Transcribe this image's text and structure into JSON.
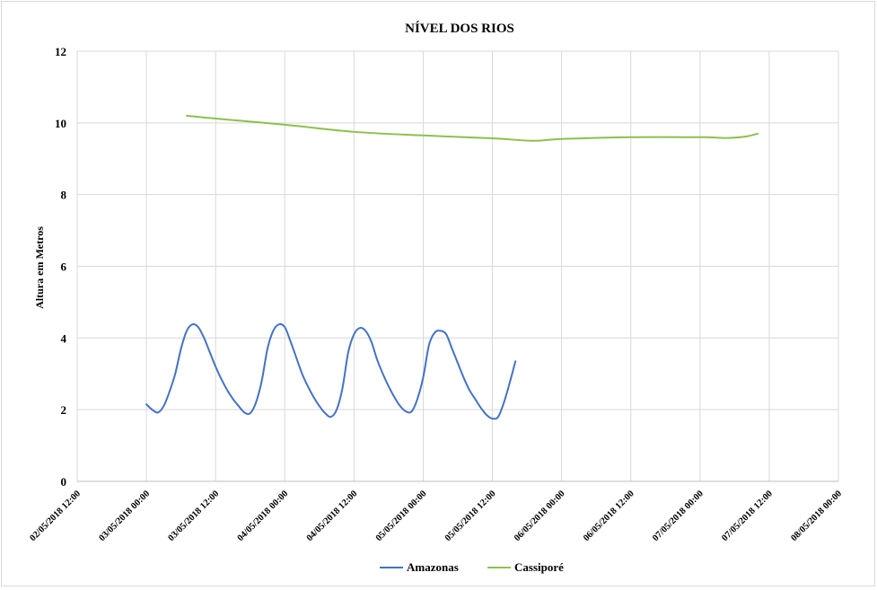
{
  "chart_data": {
    "type": "line",
    "title": "NÍVEL DOS RIOS",
    "xlabel": "",
    "ylabel": "Altura  em Metros",
    "ylim": [
      0,
      12
    ],
    "yticks": [
      0,
      2,
      4,
      6,
      8,
      10,
      12
    ],
    "xlim": [
      "02/05/2018 12:00",
      "08/05/2018 00:00"
    ],
    "xticks": [
      "02/05/2018 12:00",
      "03/05/2018 00:00",
      "03/05/2018 12:00",
      "04/05/2018 00:00",
      "04/05/2018 12:00",
      "05/05/2018 00:00",
      "05/05/2018 12:00",
      "06/05/2018 00:00",
      "06/05/2018 12:00",
      "07/05/2018 00:00",
      "07/05/2018 12:00",
      "08/05/2018 00:00"
    ],
    "grid": true,
    "legend_position": "bottom",
    "series": [
      {
        "name": "Amazonas",
        "color": "#4472c4",
        "points": [
          [
            "03/05/2018 00:00",
            2.15
          ],
          [
            "03/05/2018 01:00",
            2.0
          ],
          [
            "03/05/2018 02:00",
            1.92
          ],
          [
            "03/05/2018 03:00",
            2.1
          ],
          [
            "03/05/2018 04:00",
            2.5
          ],
          [
            "03/05/2018 05:00",
            3.0
          ],
          [
            "03/05/2018 06:00",
            3.7
          ],
          [
            "03/05/2018 07:00",
            4.2
          ],
          [
            "03/05/2018 08:00",
            4.38
          ],
          [
            "03/05/2018 09:00",
            4.3
          ],
          [
            "03/05/2018 10:00",
            4.0
          ],
          [
            "03/05/2018 11:00",
            3.6
          ],
          [
            "03/05/2018 12:00",
            3.2
          ],
          [
            "03/05/2018 13:00",
            2.85
          ],
          [
            "03/05/2018 14:00",
            2.55
          ],
          [
            "03/05/2018 15:00",
            2.3
          ],
          [
            "03/05/2018 16:00",
            2.1
          ],
          [
            "03/05/2018 17:00",
            1.92
          ],
          [
            "03/05/2018 18:00",
            1.9
          ],
          [
            "03/05/2018 19:00",
            2.2
          ],
          [
            "03/05/2018 20:00",
            2.8
          ],
          [
            "03/05/2018 21:00",
            3.7
          ],
          [
            "03/05/2018 22:00",
            4.2
          ],
          [
            "03/05/2018 23:00",
            4.38
          ],
          [
            "04/05/2018 00:00",
            4.3
          ],
          [
            "04/05/2018 01:00",
            3.9
          ],
          [
            "04/05/2018 02:00",
            3.45
          ],
          [
            "04/05/2018 03:00",
            3.0
          ],
          [
            "04/05/2018 04:00",
            2.65
          ],
          [
            "04/05/2018 05:00",
            2.35
          ],
          [
            "04/05/2018 06:00",
            2.1
          ],
          [
            "04/05/2018 07:00",
            1.9
          ],
          [
            "04/05/2018 08:00",
            1.8
          ],
          [
            "04/05/2018 09:00",
            2.0
          ],
          [
            "04/05/2018 10:00",
            2.6
          ],
          [
            "04/05/2018 11:00",
            3.6
          ],
          [
            "04/05/2018 12:00",
            4.1
          ],
          [
            "04/05/2018 13:00",
            4.28
          ],
          [
            "04/05/2018 14:00",
            4.2
          ],
          [
            "04/05/2018 15:00",
            3.9
          ],
          [
            "04/05/2018 16:00",
            3.4
          ],
          [
            "04/05/2018 17:00",
            3.0
          ],
          [
            "04/05/2018 18:00",
            2.65
          ],
          [
            "04/05/2018 19:00",
            2.35
          ],
          [
            "04/05/2018 20:00",
            2.1
          ],
          [
            "04/05/2018 21:00",
            1.95
          ],
          [
            "04/05/2018 22:00",
            1.95
          ],
          [
            "04/05/2018 23:00",
            2.3
          ],
          [
            "05/05/2018 00:00",
            2.9
          ],
          [
            "05/05/2018 01:00",
            3.8
          ],
          [
            "05/05/2018 02:00",
            4.15
          ],
          [
            "05/05/2018 03:00",
            4.2
          ],
          [
            "05/05/2018 04:00",
            4.1
          ],
          [
            "05/05/2018 05:00",
            3.7
          ],
          [
            "05/05/2018 06:00",
            3.3
          ],
          [
            "05/05/2018 07:00",
            2.9
          ],
          [
            "05/05/2018 08:00",
            2.55
          ],
          [
            "05/05/2018 09:00",
            2.3
          ],
          [
            "05/05/2018 10:00",
            2.05
          ],
          [
            "05/05/2018 11:00",
            1.85
          ],
          [
            "05/05/2018 12:00",
            1.75
          ],
          [
            "05/05/2018 13:00",
            1.8
          ],
          [
            "05/05/2018 14:00",
            2.2
          ],
          [
            "05/05/2018 15:00",
            2.75
          ],
          [
            "05/05/2018 16:00",
            3.35
          ]
        ]
      },
      {
        "name": "Cassiporé",
        "color": "#8cc04f",
        "points": [
          [
            "03/05/2018 07:00",
            10.2
          ],
          [
            "03/05/2018 12:00",
            10.12
          ],
          [
            "04/05/2018 00:00",
            9.95
          ],
          [
            "04/05/2018 12:00",
            9.75
          ],
          [
            "05/05/2018 00:00",
            9.65
          ],
          [
            "05/05/2018 12:00",
            9.57
          ],
          [
            "05/05/2018 19:00",
            9.5
          ],
          [
            "06/05/2018 00:00",
            9.55
          ],
          [
            "06/05/2018 12:00",
            9.6
          ],
          [
            "07/05/2018 00:00",
            9.6
          ],
          [
            "07/05/2018 05:00",
            9.58
          ],
          [
            "07/05/2018 08:00",
            9.62
          ],
          [
            "07/05/2018 10:00",
            9.7
          ]
        ]
      }
    ]
  }
}
